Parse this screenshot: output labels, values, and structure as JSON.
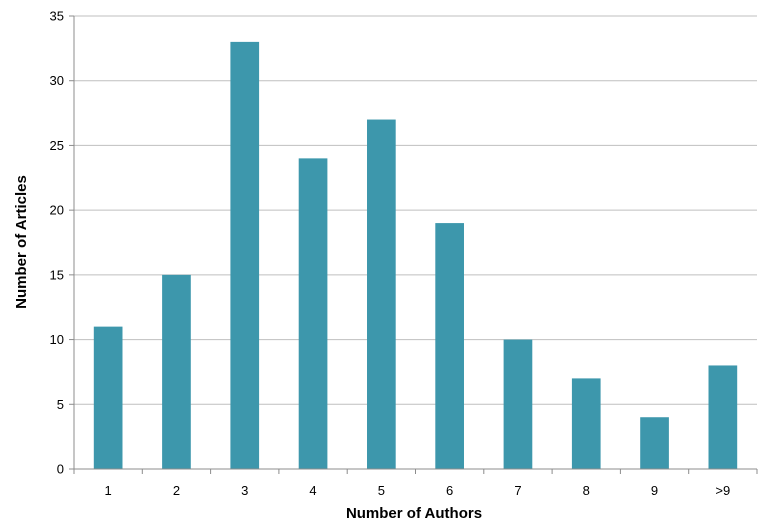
{
  "chart_data": {
    "type": "bar",
    "title": "",
    "xlabel": "Number of Authors",
    "ylabel": "Number of Articles",
    "categories": [
      "1",
      "2",
      "3",
      "4",
      "5",
      "6",
      "7",
      "8",
      "9",
      ">9"
    ],
    "values": [
      11,
      15,
      33,
      24,
      27,
      19,
      10,
      7,
      4,
      8
    ],
    "ylim": [
      0,
      35
    ],
    "yticks": [
      0,
      5,
      10,
      15,
      20,
      25,
      30,
      35
    ],
    "grid": true,
    "legend": "none",
    "bar_color": "#3D97AC",
    "grid_color": "#BFBFBF"
  }
}
